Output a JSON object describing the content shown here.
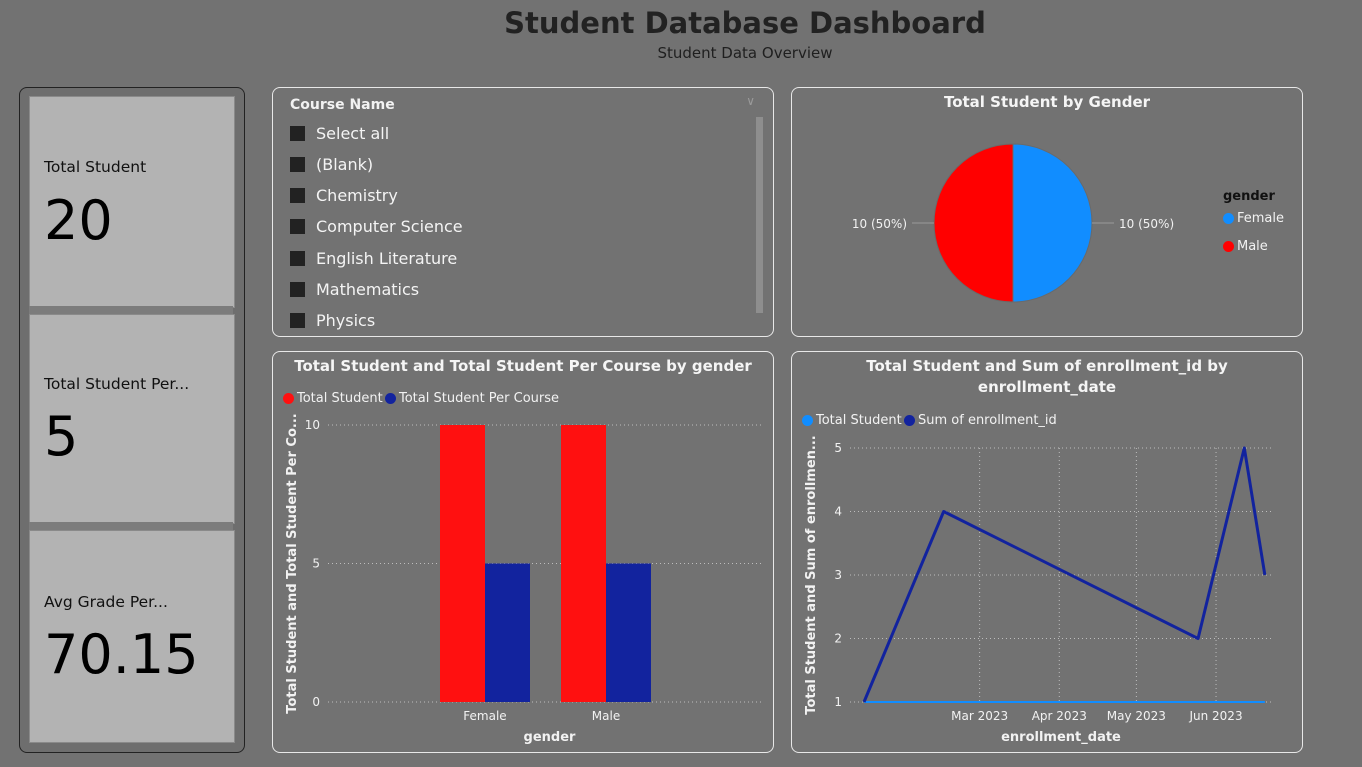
{
  "header": {
    "title": "Student Database Dashboard",
    "subtitle": "Student Data Overview"
  },
  "kpis": [
    {
      "label": "Total Student",
      "value": "20"
    },
    {
      "label": "Total Student Per...",
      "value": "5"
    },
    {
      "label": "Avg Grade Per...",
      "value": "70.15"
    }
  ],
  "slicer": {
    "title": "Course Name",
    "items": [
      "Select all",
      "(Blank)",
      "Chemistry",
      "Computer Science",
      "English Literature",
      "Mathematics",
      "Physics"
    ]
  },
  "colors": {
    "red": "#ff0000",
    "blue": "#118dff",
    "navy": "#12239e",
    "bar_red": "#ff1010"
  },
  "pie_card": {
    "title": "Total Student by Gender",
    "legend_title": "gender",
    "legend": [
      "Female",
      "Male"
    ],
    "labels": [
      "10 (50%)",
      "10 (50%)"
    ]
  },
  "bar_card": {
    "title": "Total Student and Total Student Per Course by gender",
    "legend": [
      "Total Student",
      "Total Student Per Course"
    ],
    "ylabel": "Total Student and Total Student Per Co...",
    "xlabel": "gender"
  },
  "line_card": {
    "title_line1": "Total Student and Sum of enrollment_id by",
    "title_line2": "enrollment_date",
    "legend": [
      "Total Student",
      "Sum of enrollment_id"
    ],
    "ylabel": "Total Student and Sum of enrollmen...",
    "xlabel": "enrollment_date"
  },
  "chart_data": [
    {
      "type": "pie",
      "title": "Total Student by Gender",
      "categories": [
        "Female",
        "Male"
      ],
      "values": [
        10,
        10
      ],
      "legend_position": "right"
    },
    {
      "type": "bar",
      "title": "Total Student and Total Student Per Course by gender",
      "categories": [
        "Female",
        "Male"
      ],
      "series": [
        {
          "name": "Total Student",
          "values": [
            10,
            10
          ]
        },
        {
          "name": "Total Student Per Course",
          "values": [
            5,
            5
          ]
        }
      ],
      "ylim": [
        0,
        10
      ],
      "yticks": [
        "0",
        "5",
        "10"
      ],
      "xlabel": "gender",
      "ylabel": "Total Student and Total Student Per Co...",
      "legend_position": "top-left",
      "grid": true
    },
    {
      "type": "line",
      "title": "Total Student and Sum of enrollment_id by enrollment_date",
      "x": [
        "2023-01-15",
        "2023-02-15",
        "2023-05-25",
        "2023-06-12",
        "2023-06-20"
      ],
      "series": [
        {
          "name": "Total Student",
          "values": [
            1,
            1,
            1,
            1,
            1
          ]
        },
        {
          "name": "Sum of enrollment_id",
          "values": [
            1,
            4,
            2,
            5,
            3
          ]
        }
      ],
      "xticks": [
        "Mar 2023",
        "Apr 2023",
        "May 2023",
        "Jun 2023"
      ],
      "yticks": [
        "1",
        "2",
        "3",
        "4",
        "5"
      ],
      "ylim": [
        1,
        5
      ],
      "xlabel": "enrollment_date",
      "ylabel": "Total Student and Sum of enrollmen...",
      "legend_position": "top-left",
      "grid": true
    }
  ]
}
